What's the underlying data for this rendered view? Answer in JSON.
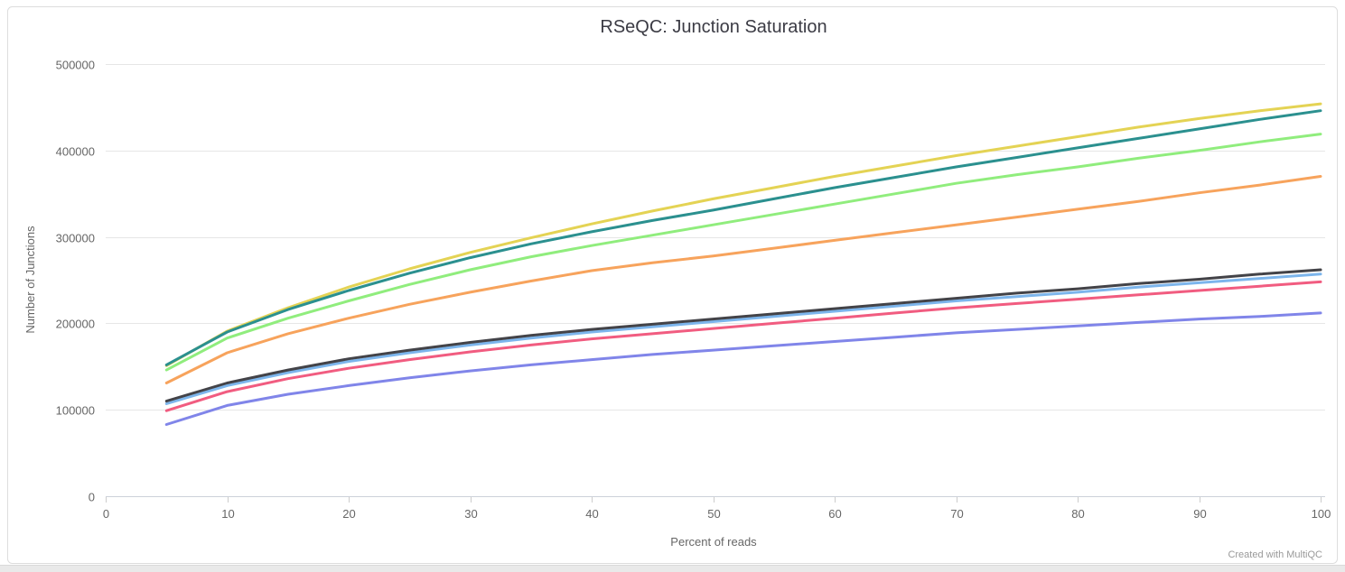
{
  "page": {
    "credit": "Created with MultiQC"
  },
  "chart_data": {
    "type": "line",
    "title": "RSeQC: Junction Saturation",
    "xlabel": "Percent of reads",
    "ylabel": "Number of Junctions",
    "xlim": [
      0,
      100
    ],
    "ylim": [
      0,
      500000
    ],
    "x_ticks": [
      0,
      10,
      20,
      30,
      40,
      50,
      60,
      70,
      80,
      90,
      100
    ],
    "y_ticks": [
      0,
      100000,
      200000,
      300000,
      400000,
      500000
    ],
    "grid": "horizontal",
    "legend": "none",
    "x": [
      5,
      10,
      15,
      20,
      25,
      30,
      35,
      40,
      45,
      50,
      55,
      60,
      65,
      70,
      75,
      80,
      85,
      90,
      95,
      100
    ],
    "series": [
      {
        "name": "light-blue",
        "color": "#7cb5ec",
        "values": [
          107000,
          128000,
          143000,
          156000,
          166000,
          175000,
          183000,
          190000,
          196000,
          202000,
          208000,
          214000,
          220000,
          226000,
          231000,
          236000,
          242000,
          247000,
          252000,
          257000
        ]
      },
      {
        "name": "dark-gray",
        "color": "#434348",
        "values": [
          110000,
          131000,
          146000,
          159000,
          169000,
          178000,
          186000,
          193000,
          199000,
          205000,
          211000,
          217000,
          223000,
          229000,
          235000,
          240000,
          246000,
          251000,
          257000,
          262000
        ]
      },
      {
        "name": "light-green",
        "color": "#90ed7d",
        "values": [
          146000,
          183000,
          206000,
          226000,
          245000,
          262000,
          277000,
          290000,
          302000,
          314000,
          326000,
          338000,
          350000,
          362000,
          372000,
          381000,
          391000,
          400000,
          410000,
          419000
        ]
      },
      {
        "name": "orange",
        "color": "#f7a35c",
        "values": [
          131000,
          166000,
          188000,
          206000,
          222000,
          236000,
          249000,
          261000,
          270000,
          278000,
          287000,
          296000,
          305000,
          314000,
          323000,
          332000,
          341000,
          351000,
          360000,
          370000
        ]
      },
      {
        "name": "purple",
        "color": "#8085e9",
        "values": [
          83000,
          105000,
          118000,
          128000,
          137000,
          145000,
          152000,
          158000,
          164000,
          169000,
          174000,
          179000,
          184000,
          189000,
          193000,
          197000,
          201000,
          205000,
          208000,
          212000
        ]
      },
      {
        "name": "pink",
        "color": "#f15c80",
        "values": [
          99000,
          121000,
          136000,
          148000,
          158000,
          167000,
          175000,
          182000,
          188000,
          194000,
          200000,
          206000,
          212000,
          218000,
          223000,
          228000,
          233000,
          238000,
          243000,
          248000
        ]
      },
      {
        "name": "yellow",
        "color": "#e4d354",
        "values": [
          151000,
          191000,
          218000,
          242000,
          263000,
          282000,
          299000,
          315000,
          330000,
          344000,
          357000,
          370000,
          382000,
          394000,
          405000,
          416000,
          427000,
          437000,
          446000,
          454000
        ]
      },
      {
        "name": "teal",
        "color": "#2b908f",
        "values": [
          152000,
          190000,
          216000,
          238000,
          258000,
          276000,
          292000,
          306000,
          319000,
          331000,
          344000,
          357000,
          369000,
          381000,
          392000,
          403000,
          414000,
          425000,
          436000,
          446000
        ]
      }
    ]
  }
}
